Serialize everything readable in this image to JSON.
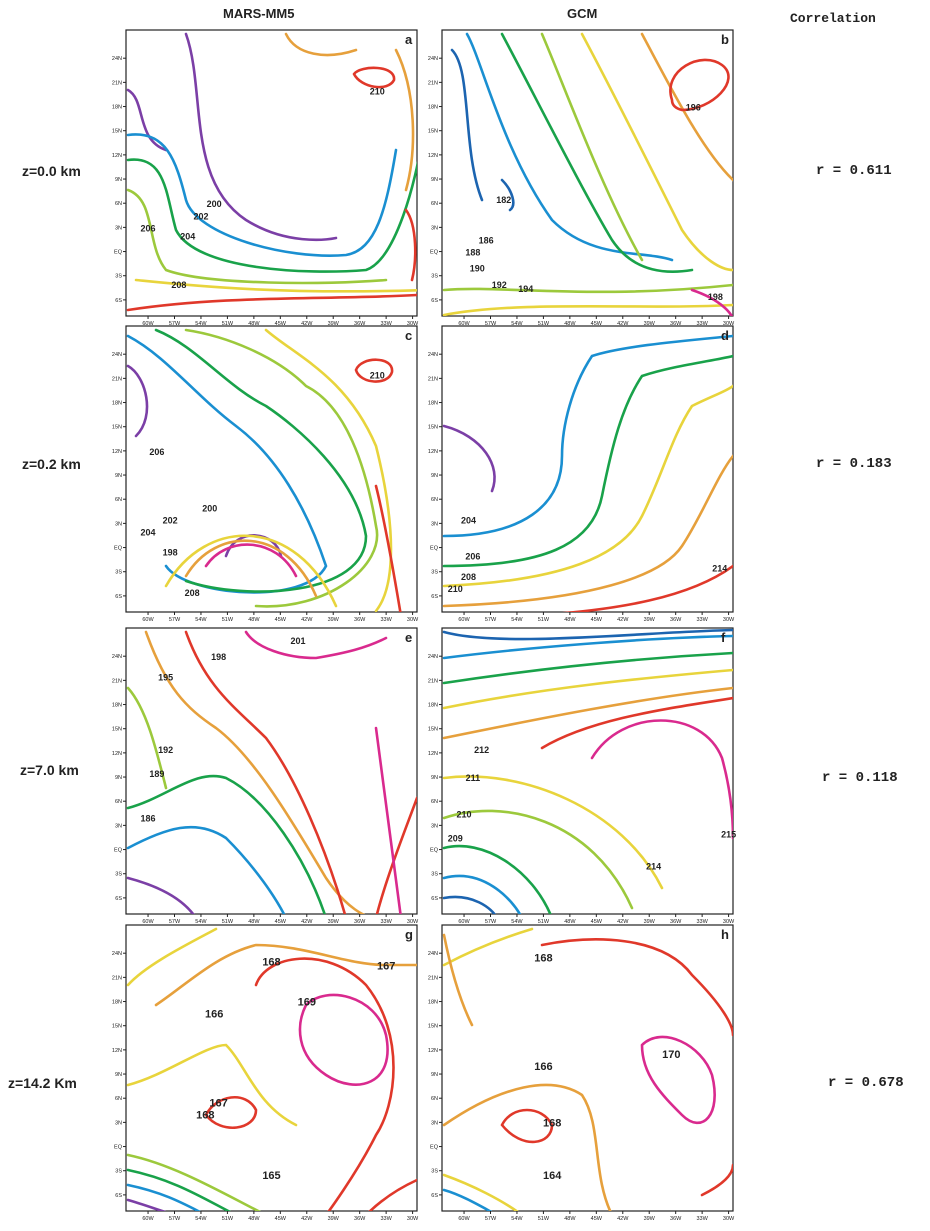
{
  "headers": {
    "left": "MARS-MM5",
    "middle": "GCM",
    "right": "Correlation"
  },
  "rows": [
    {
      "level": "z=0.0 km",
      "corr": "r = 0.611"
    },
    {
      "level": "z=0.2 km",
      "corr": "r = 0.183"
    },
    {
      "level": "z=7.0 km",
      "corr": "r = 0.118"
    },
    {
      "level": "z=14.2 Km",
      "corr": "r = 0.678"
    }
  ],
  "chart_data": {
    "type": "contour",
    "lat_ticks": [
      "24N",
      "21N",
      "18N",
      "15N",
      "12N",
      "9N",
      "6N",
      "3N",
      "EQ",
      "3S",
      "6S"
    ],
    "lat_values": [
      24,
      21,
      18,
      15,
      12,
      9,
      6,
      3,
      0,
      -3,
      -6
    ],
    "lon_ticks": [
      "60W",
      "57W",
      "54W",
      "51W",
      "48W",
      "45W",
      "42W",
      "39W",
      "36W",
      "33W",
      "30W"
    ],
    "lon_values": [
      -60,
      -57,
      -54,
      -51,
      -48,
      -45,
      -42,
      -39,
      -36,
      -33,
      -30
    ],
    "xlim": [
      -62.5,
      -29.5
    ],
    "ylim": [
      -8,
      27.5
    ],
    "panels": [
      {
        "id": "a",
        "letters": "a",
        "model": "MARS-MM5",
        "level": "z=0.0 km",
        "contour_labels": [
          {
            "text": "210",
            "lon": -34,
            "lat": 19.5
          },
          {
            "text": "200",
            "lon": -52.5,
            "lat": 5.5
          },
          {
            "text": "202",
            "lon": -54,
            "lat": 4
          },
          {
            "text": "206",
            "lon": -60,
            "lat": 2.5
          },
          {
            "text": "204",
            "lon": -55.5,
            "lat": 1.5
          },
          {
            "text": "208",
            "lon": -56.5,
            "lat": -4.5
          }
        ]
      },
      {
        "id": "b",
        "letters": "b",
        "model": "GCM",
        "level": "z=0.0 km",
        "contour_labels": [
          {
            "text": "196",
            "lon": -34,
            "lat": 17.5
          },
          {
            "text": "182",
            "lon": -55.5,
            "lat": 6
          },
          {
            "text": "186",
            "lon": -57.5,
            "lat": 1
          },
          {
            "text": "188",
            "lon": -59,
            "lat": -0.5
          },
          {
            "text": "190",
            "lon": -58.5,
            "lat": -2.5
          },
          {
            "text": "192",
            "lon": -56,
            "lat": -4.5
          },
          {
            "text": "194",
            "lon": -53,
            "lat": -5
          },
          {
            "text": "198",
            "lon": -31.5,
            "lat": -6
          }
        ]
      },
      {
        "id": "c",
        "letters": "c",
        "model": "MARS-MM5",
        "level": "z=0.2 km",
        "contour_labels": [
          {
            "text": "210",
            "lon": -34,
            "lat": 21
          },
          {
            "text": "206",
            "lon": -59,
            "lat": 11.5
          },
          {
            "text": "200",
            "lon": -53,
            "lat": 4.5
          },
          {
            "text": "202",
            "lon": -57.5,
            "lat": 3
          },
          {
            "text": "204",
            "lon": -60,
            "lat": 1.5
          },
          {
            "text": "198",
            "lon": -57.5,
            "lat": -1
          },
          {
            "text": "208",
            "lon": -55,
            "lat": -6
          }
        ]
      },
      {
        "id": "d",
        "letters": "d",
        "model": "GCM",
        "level": "z=0.2 km",
        "contour_labels": [
          {
            "text": "204",
            "lon": -59.5,
            "lat": 3
          },
          {
            "text": "206",
            "lon": -59,
            "lat": -1.5
          },
          {
            "text": "208",
            "lon": -59.5,
            "lat": -4
          },
          {
            "text": "210",
            "lon": -61,
            "lat": -5.5
          },
          {
            "text": "214",
            "lon": -31,
            "lat": -3
          }
        ]
      },
      {
        "id": "e",
        "letters": "e",
        "model": "MARS-MM5",
        "level": "z=7.0 km",
        "contour_labels": [
          {
            "text": "201",
            "lon": -43,
            "lat": 25.5
          },
          {
            "text": "198",
            "lon": -52,
            "lat": 23.5
          },
          {
            "text": "195",
            "lon": -58,
            "lat": 21
          },
          {
            "text": "192",
            "lon": -58,
            "lat": 12
          },
          {
            "text": "189",
            "lon": -59,
            "lat": 9
          },
          {
            "text": "186",
            "lon": -60,
            "lat": 3.5
          }
        ]
      },
      {
        "id": "f",
        "letters": "f",
        "model": "GCM",
        "level": "z=7.0 km",
        "contour_labels": [
          {
            "text": "212",
            "lon": -58,
            "lat": 12
          },
          {
            "text": "211",
            "lon": -59,
            "lat": 8.5
          },
          {
            "text": "210",
            "lon": -60,
            "lat": 4
          },
          {
            "text": "209",
            "lon": -61,
            "lat": 1
          },
          {
            "text": "214",
            "lon": -38.5,
            "lat": -2.5
          },
          {
            "text": "215",
            "lon": -30,
            "lat": 1.5
          }
        ]
      },
      {
        "id": "g",
        "letters": "g",
        "model": "MARS-MM5",
        "level": "z=14.2 Km",
        "contour_labels": [
          {
            "text": "168",
            "lon": -46,
            "lat": 22.5
          },
          {
            "text": "167",
            "lon": -33,
            "lat": 22
          },
          {
            "text": "169",
            "lon": -42,
            "lat": 17.5
          },
          {
            "text": "166",
            "lon": -52.5,
            "lat": 16
          },
          {
            "text": "167",
            "lon": -52,
            "lat": 5
          },
          {
            "text": "168",
            "lon": -53.5,
            "lat": 3.5
          },
          {
            "text": "165",
            "lon": -46,
            "lat": -4
          }
        ]
      },
      {
        "id": "h",
        "letters": "h",
        "model": "GCM",
        "level": "z=14.2 Km",
        "contour_labels": [
          {
            "text": "168",
            "lon": -51,
            "lat": 23
          },
          {
            "text": "170",
            "lon": -36.5,
            "lat": 11
          },
          {
            "text": "166",
            "lon": -51,
            "lat": 9.5
          },
          {
            "text": "168",
            "lon": -50,
            "lat": 2.5
          },
          {
            "text": "164",
            "lon": -50,
            "lat": -4
          }
        ]
      }
    ],
    "colors": [
      "#7b3fa6",
      "#1a8fd1",
      "#19a24a",
      "#9cc93c",
      "#e8d43c",
      "#e6a03c",
      "#e0382a",
      "#d92a8e",
      "#1c64b0"
    ]
  }
}
